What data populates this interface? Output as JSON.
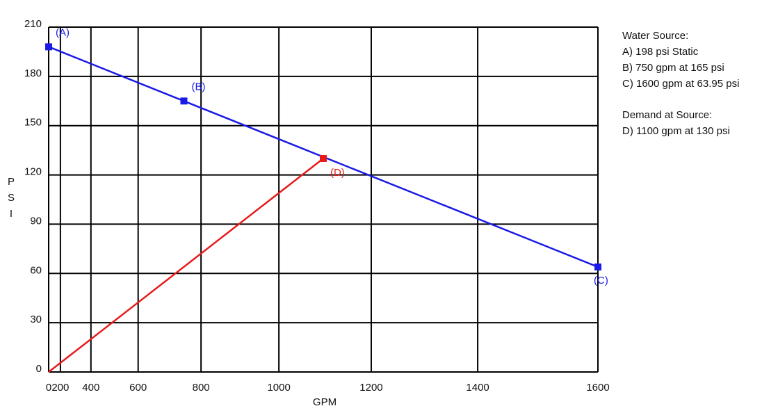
{
  "chart_data": {
    "type": "line",
    "x_label": "GPM",
    "y_label": "PSI",
    "x_scale_exponent": 1.85,
    "xlim": [
      0,
      1600
    ],
    "xticks": [
      0,
      200,
      400,
      600,
      800,
      1000,
      1200,
      1400,
      1600
    ],
    "ylim": [
      0,
      210
    ],
    "yticks": [
      0,
      30,
      60,
      90,
      120,
      150,
      180,
      210
    ],
    "grid": true,
    "series": [
      {
        "color": "#1a1ae6",
        "x": [
          0,
          750,
          1600
        ],
        "values": [
          198,
          165,
          63.95
        ],
        "point_labels": [
          "(A)",
          "(B)",
          "(C)"
        ]
      },
      {
        "color": "#e61a1a",
        "x": [
          0,
          1100
        ],
        "values": [
          0,
          130
        ],
        "point_labels": [
          null,
          "(D)"
        ]
      }
    ],
    "notes": [
      {
        "heading": "Water Source:",
        "lines": [
          "A) 198 psi Static",
          "B) 750 gpm at 165 psi",
          "C) 1600 gpm at 63.95 psi"
        ]
      },
      {
        "heading": "Demand at Source:",
        "lines": [
          "D) 1100 gpm at 130 psi"
        ]
      }
    ]
  }
}
